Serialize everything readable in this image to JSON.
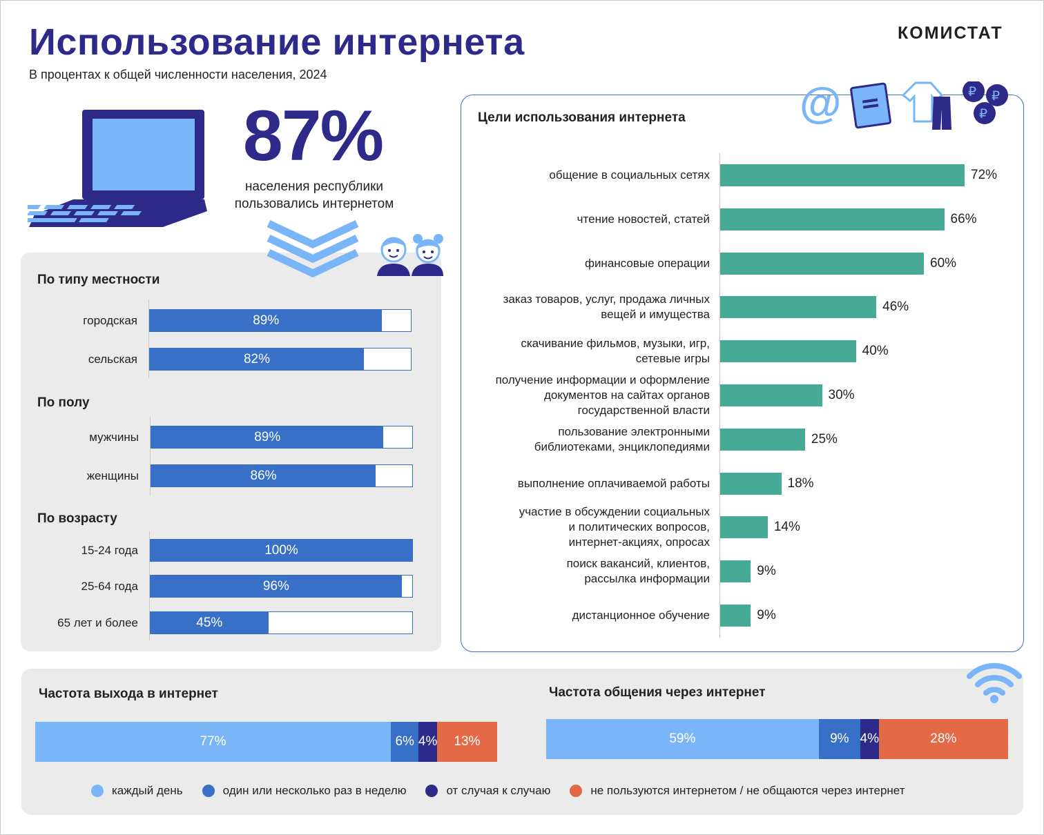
{
  "header": {
    "title": "Использование интернета",
    "subtitle": "В процентах к общей численности населения, 2024",
    "brand": "КОМИСТАТ"
  },
  "headline": {
    "value": "87%",
    "caption_line1": "населения республики",
    "caption_line2": "пользовались интернетом"
  },
  "colors": {
    "title": "#2e2a8a",
    "demo_bar": "#3770c6",
    "goal_bar": "#47aa96",
    "daily": "#7ab6f7",
    "weekly": "#3770c6",
    "occasional": "#2e2a8a",
    "not_using": "#e46a47"
  },
  "icons": [
    "laptop-icon",
    "chevron-down-icon",
    "children-icon",
    "at-sign-icon",
    "book-icon",
    "clothes-icon",
    "ruble-coins-icon",
    "wifi-icon"
  ],
  "chart_data": [
    {
      "type": "bar",
      "title": "По типу местности",
      "categories": [
        "городская",
        "сельская"
      ],
      "values": [
        89,
        82
      ],
      "value_labels": [
        "89%",
        "82%"
      ],
      "ylim": [
        0,
        100
      ],
      "orientation": "horizontal"
    },
    {
      "type": "bar",
      "title": "По полу",
      "categories": [
        "мужчины",
        "женщины"
      ],
      "values": [
        89,
        86
      ],
      "value_labels": [
        "89%",
        "86%"
      ],
      "ylim": [
        0,
        100
      ],
      "orientation": "horizontal"
    },
    {
      "type": "bar",
      "title": "По возрасту",
      "categories": [
        "15-24 года",
        "25-64 года",
        "65 лет и более"
      ],
      "values": [
        100,
        96,
        45
      ],
      "value_labels": [
        "100%",
        "96%",
        "45%"
      ],
      "ylim": [
        0,
        100
      ],
      "orientation": "horizontal"
    },
    {
      "type": "bar",
      "title": "Цели использования интернета",
      "categories": [
        [
          "общение в социальных сетях"
        ],
        [
          "чтение новостей, статей"
        ],
        [
          "финансовые операции"
        ],
        [
          "заказ товаров, услуг, продажа личных",
          "вещей и имущества"
        ],
        [
          "скачивание фильмов, музыки, игр,",
          "сетевые игры"
        ],
        [
          "получение информации и оформление",
          "документов на сайтах органов",
          "государственной власти"
        ],
        [
          "пользование электронными",
          "библиотеками, энциклопедиями"
        ],
        [
          "выполнение оплачиваемой работы"
        ],
        [
          "участие в обсуждении социальных",
          "и политических вопросов,",
          "интернет-акциях, опросах"
        ],
        [
          "поиск вакансий, клиентов,",
          "рассылка информации"
        ],
        [
          "дистанционное обучение"
        ]
      ],
      "values": [
        72,
        66,
        60,
        46,
        40,
        30,
        25,
        18,
        14,
        9,
        9
      ],
      "value_labels": [
        "72%",
        "66%",
        "60%",
        "46%",
        "40%",
        "30%",
        "25%",
        "18%",
        "14%",
        "9%",
        "9%"
      ],
      "orientation": "horizontal"
    },
    {
      "type": "bar",
      "stacked": true,
      "title": "Частота выхода в интернет",
      "series": [
        {
          "name": "каждый день",
          "values": [
            77
          ],
          "label": "77%"
        },
        {
          "name": "один или несколько раз в неделю",
          "values": [
            6
          ],
          "label": "6%"
        },
        {
          "name": "от случая к случаю",
          "values": [
            4
          ],
          "label": "4%"
        },
        {
          "name": "не пользуются интернетом / не общаются через интернет",
          "values": [
            13
          ],
          "label": "13%"
        }
      ]
    },
    {
      "type": "bar",
      "stacked": true,
      "title": "Частота общения через интернет",
      "series": [
        {
          "name": "каждый день",
          "values": [
            59
          ],
          "label": "59%"
        },
        {
          "name": "один или несколько раз в неделю",
          "values": [
            9
          ],
          "label": "9%"
        },
        {
          "name": "от случая к случаю",
          "values": [
            4
          ],
          "label": "4%"
        },
        {
          "name": "не пользуются интернетом / не общаются через интернет",
          "values": [
            28
          ],
          "label": "28%"
        }
      ]
    }
  ],
  "legend": {
    "items": [
      "каждый день",
      "один или несколько раз в неделю",
      "от случая к случаю",
      "не пользуются интернетом / не общаются через интернет"
    ]
  }
}
